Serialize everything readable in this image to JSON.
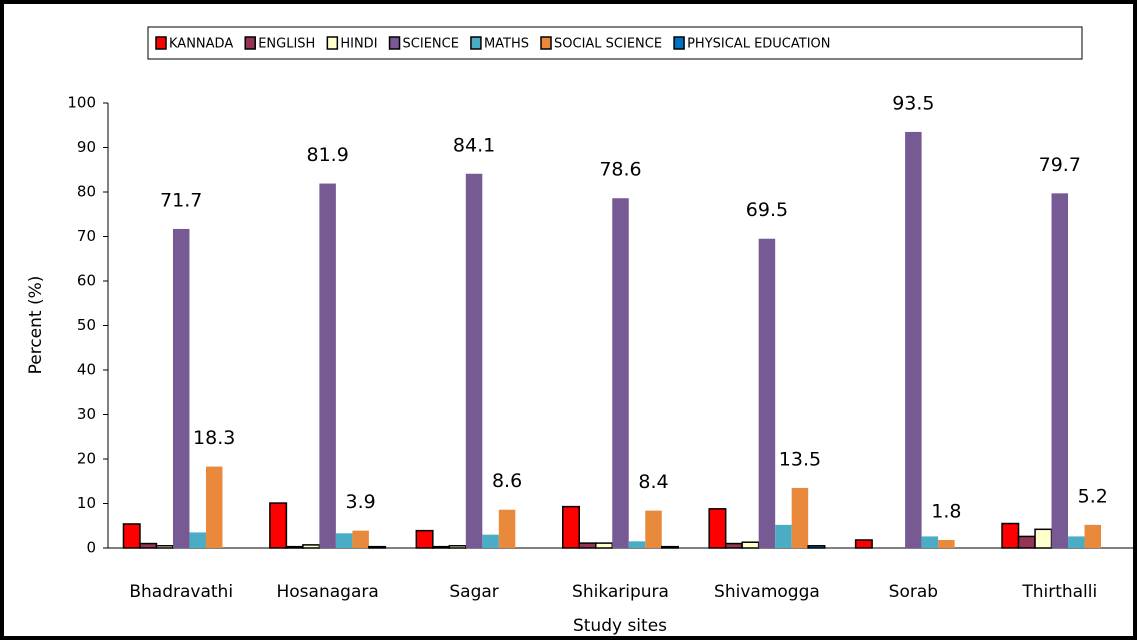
{
  "chart_data": {
    "type": "bar",
    "y_label": "Percent (%)",
    "x_label": "Study sites",
    "categories": [
      "Bhadravathi",
      "Hosanagara",
      "Sagar",
      "Shikaripura",
      "Shivamogga",
      "Sorab",
      "Thirthalli"
    ],
    "series": [
      {
        "name": "KANNADA",
        "color": "#ff0000",
        "outline": true,
        "values": [
          5.4,
          10.1,
          3.9,
          9.3,
          8.8,
          1.8,
          5.5
        ]
      },
      {
        "name": "ENGLISH",
        "color": "#953553",
        "outline": true,
        "values": [
          1.0,
          0.3,
          0.3,
          1.1,
          1.0,
          0,
          2.6
        ]
      },
      {
        "name": "HINDI",
        "color": "#ffffcc",
        "outline": true,
        "values": [
          0.5,
          0.7,
          0.5,
          1.1,
          1.3,
          0,
          4.2
        ]
      },
      {
        "name": "SCIENCE",
        "color": "#775a93",
        "outline": false,
        "data_labels": true,
        "values": [
          71.7,
          81.9,
          84.1,
          78.6,
          69.5,
          93.5,
          79.7
        ]
      },
      {
        "name": "MATHS",
        "color": "#4bacc6",
        "outline": false,
        "values": [
          3.5,
          3.3,
          3.0,
          1.5,
          5.2,
          2.6,
          2.6
        ]
      },
      {
        "name": "SOCIAL SCIENCE",
        "color": "#e8893b",
        "outline": false,
        "data_labels": true,
        "values": [
          18.3,
          3.9,
          8.6,
          8.4,
          13.5,
          1.8,
          5.2
        ]
      },
      {
        "name": "PHYSICAL EDUCATION",
        "color": "#0070c0",
        "outline": true,
        "values": [
          0,
          0.3,
          0,
          0.3,
          0.5,
          0,
          0
        ]
      }
    ],
    "ylim": [
      0,
      100
    ],
    "yticks": [
      0,
      10,
      20,
      30,
      40,
      50,
      60,
      70,
      80,
      90,
      100
    ],
    "grid": false,
    "legend": "top"
  }
}
